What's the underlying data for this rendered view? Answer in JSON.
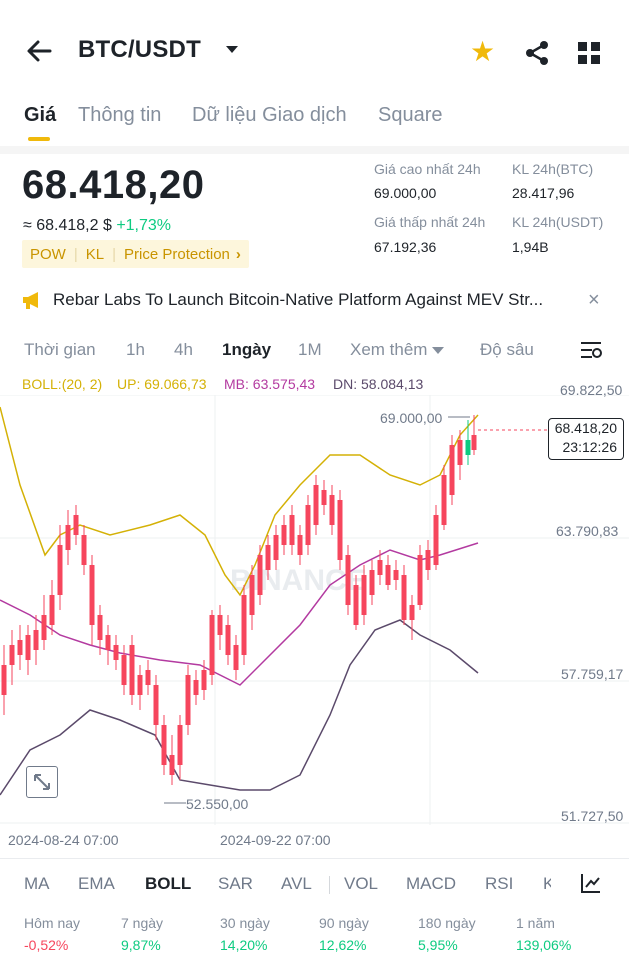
{
  "header": {
    "title": "BTC/USDT",
    "icons": [
      "arrow-left-icon",
      "chevron-down-icon",
      "star-icon",
      "share-icon",
      "grid-icon"
    ],
    "star_color": "#f0b90b"
  },
  "tabs": [
    "Giá",
    "Thông tin",
    "Dữ liệu Giao dịch",
    "Square"
  ],
  "price": {
    "last": "68.418,20",
    "approx": "≈ 68.418,2 $",
    "change": "+1,73%",
    "tags": [
      "POW",
      "KL",
      "Price Protection"
    ],
    "high_label": "Giá cao nhất 24h",
    "high": "69.000,00",
    "low_label": "Giá thấp nhất 24h",
    "low": "67.192,36",
    "vol_btc_label": "KL 24h(BTC)",
    "vol_btc": "28.417,96",
    "vol_usdt_label": "KL 24h(USDT)",
    "vol_usdt": "1,94B"
  },
  "news": {
    "text": "Rebar Labs To Launch Bitcoin-Native Platform Against MEV Str...",
    "close": "×"
  },
  "time_tabs": [
    "Thời gian",
    "1h",
    "4h",
    "1ngày",
    "1M",
    "Xem thêm",
    "Độ sâu"
  ],
  "boll": {
    "label": "BOLL:(20, 2)",
    "up": "UP: 69.066,73",
    "mb": "MB: 63.575,43",
    "dn": "DN: 58.084,13",
    "up_color": "#d4b106",
    "mb_color": "#b33aa0",
    "dn_color": "#5b4a6b"
  },
  "chart": {
    "y_labels": [
      "69.822,50",
      "63.790,83",
      "57.759,17",
      "51.727,50"
    ],
    "x_labels": [
      "2024-08-24 07:00",
      "2024-09-22 07:00"
    ],
    "high_marker": "69.000,00",
    "low_marker": "52.550,00",
    "current_price": "68.418,20",
    "countdown": "23:12:26",
    "watermark": "BINANCE",
    "up_color": "#0ecb81",
    "down_color": "#f6465d"
  },
  "indicator_tabs": [
    "MA",
    "EMA",
    "BOLL",
    "SAR",
    "AVL",
    "VOL",
    "MACD",
    "RSI",
    "K"
  ],
  "performance": [
    {
      "label": "Hôm nay",
      "value": "-0,52%"
    },
    {
      "label": "7 ngày",
      "value": "9,87%"
    },
    {
      "label": "30 ngày",
      "value": "14,20%"
    },
    {
      "label": "90 ngày",
      "value": "12,62%"
    },
    {
      "label": "180 ngày",
      "value": "5,95%"
    },
    {
      "label": "1 năm",
      "value": "139,06%"
    }
  ]
}
